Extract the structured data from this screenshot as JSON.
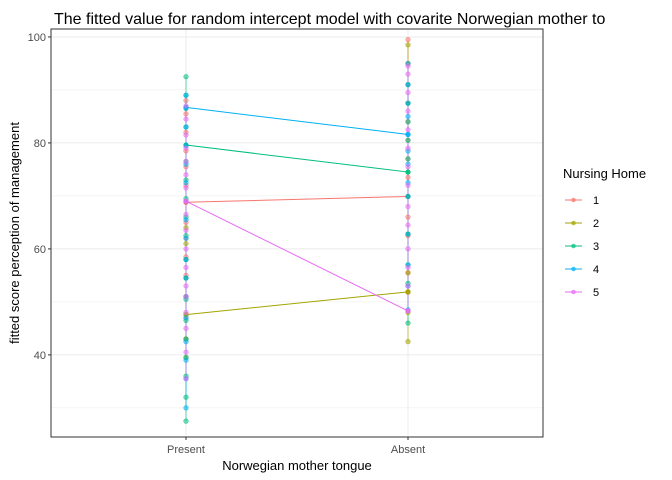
{
  "chart_data": {
    "type": "scatter",
    "title": "The fitted value for random intercept model with covarite Norwegian mother to",
    "xlabel": "Norwegian mother tongue",
    "ylabel": "fitted score perception of management",
    "categories": [
      "Present",
      "Absent"
    ],
    "ylim": [
      24.5,
      101.5
    ],
    "yticks": [
      40,
      60,
      80,
      100
    ],
    "grid": true,
    "legend": {
      "title": "Nursing Home",
      "position": "right"
    },
    "series": [
      {
        "name": "1",
        "color": "#F8766D",
        "line": [
          68.8,
          69.9
        ],
        "points": [
          {
            "x": "Present",
            "y": [
              43.0,
              47.0,
              51.0,
              55.0,
              58.5,
              62.0,
              65.0,
              68.8,
              72.0,
              75.5,
              78.5,
              82.0,
              85.5,
              88.0
            ]
          },
          {
            "x": "Absent",
            "y": [
              51.8,
              55.5,
              62.5,
              66.0,
              69.9,
              73.5,
              77.0,
              80.5,
              84.0,
              87.5,
              91.0,
              95.0,
              99.5
            ]
          }
        ]
      },
      {
        "name": "2",
        "color": "#A3A500",
        "line": [
          47.6,
          51.9
        ],
        "points": [
          {
            "x": "Present",
            "y": [
              39.5,
              43.0,
              47.6,
              51.0,
              54.5,
              58.0,
              61.0,
              64.0
            ]
          },
          {
            "x": "Absent",
            "y": [
              42.5,
              48.0,
              51.9,
              55.5,
              62.8,
              69.9,
              87.5,
              95.0,
              98.5
            ]
          }
        ]
      },
      {
        "name": "3",
        "color": "#00BF7D",
        "line": [
          79.6,
          74.5
        ],
        "points": [
          {
            "x": "Present",
            "y": [
              27.5,
              32.0,
              36.0,
              39.5,
              43.0,
              46.5,
              50.5,
              54.5,
              58.0,
              62.5,
              66.0,
              69.5,
              73.0,
              76.5,
              79.6,
              83.0,
              86.5,
              89.0,
              92.5
            ]
          },
          {
            "x": "Absent",
            "y": [
              46.0,
              53.5,
              57.0,
              62.8,
              69.9,
              74.5,
              77.0,
              80.5,
              84.0,
              87.5,
              91.0
            ]
          }
        ]
      },
      {
        "name": "4",
        "color": "#00B0F6",
        "line": [
          86.7,
          81.6
        ],
        "points": [
          {
            "x": "Present",
            "y": [
              30.0,
              35.5,
              39.0,
              42.5,
              47.0,
              51.0,
              54.5,
              58.0,
              62.0,
              65.5,
              69.0,
              72.5,
              76.0,
              79.5,
              83.0,
              86.7,
              89.0
            ]
          },
          {
            "x": "Absent",
            "y": [
              48.5,
              53.0,
              57.0,
              62.8,
              69.9,
              72.5,
              76.0,
              78.5,
              81.6,
              85.0,
              87.5,
              91.0,
              95.0
            ]
          }
        ]
      },
      {
        "name": "5",
        "color": "#E76BF3",
        "line": [
          69.0,
          48.3
        ],
        "points": [
          {
            "x": "Present",
            "y": [
              35.5,
              40.5,
              45.0,
              48.0,
              51.0,
              53.0,
              56.5,
              60.0,
              63.5,
              66.5,
              69.0,
              71.5,
              74.0,
              76.5,
              79.0,
              81.5,
              84.5,
              87.0
            ]
          },
          {
            "x": "Absent",
            "y": [
              48.3,
              53.0,
              56.5,
              60.0,
              64.5,
              68.0,
              72.0,
              75.5,
              79.0,
              82.5,
              86.0,
              89.5,
              93.0,
              94.5
            ]
          }
        ]
      }
    ]
  }
}
